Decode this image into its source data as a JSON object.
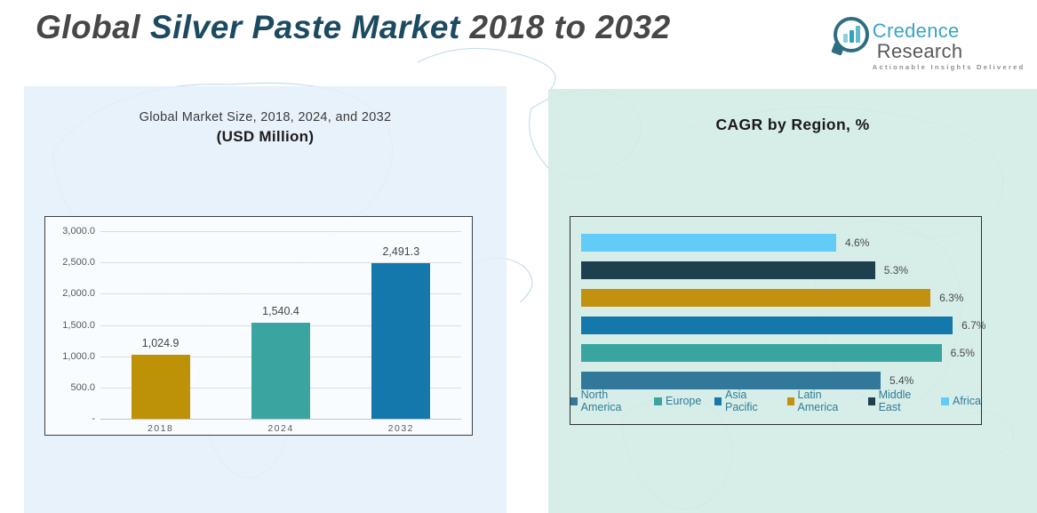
{
  "header": {
    "title_part1": "Global",
    "title_part2": "Silver Paste Market",
    "title_part3": "2018 to 2032"
  },
  "logo": {
    "brand_primary": "Credence",
    "brand_secondary": "Research",
    "tagline": "Actionable Insights Delivered",
    "icon": "bar-chart-speech-bubble-icon",
    "accent_color": "#3BA4C6",
    "ring_color": "#2E6E80"
  },
  "chart_data": [
    {
      "type": "bar",
      "title": "Global Market Size, 2018, 2024, and 2032",
      "subtitle": "(USD Million)",
      "categories": [
        "2018",
        "2024",
        "2032"
      ],
      "values": [
        1024.9,
        1540.4,
        2491.3
      ],
      "value_labels": [
        "1,024.9",
        "1,540.4",
        "2,491.3"
      ],
      "bar_colors": [
        "#BE9207",
        "#3AA5A0",
        "#1478AC"
      ],
      "xlabel": "",
      "ylabel": "",
      "ylim": [
        0,
        3000
      ],
      "yticks": [
        0,
        500,
        1000,
        1500,
        2000,
        2500,
        3000
      ],
      "ytick_labels": [
        "-",
        "500.0",
        "1,000.0",
        "1,500.0",
        "2,000.0",
        "2,500.0",
        "3,000.0"
      ],
      "grid": true,
      "legend_position": "none"
    },
    {
      "type": "bar",
      "orientation": "horizontal",
      "title": "CAGR by Region, %",
      "categories": [
        "Africa",
        "Middle East",
        "Latin America",
        "Asia Pacific",
        "Europe",
        "North America"
      ],
      "values": [
        4.6,
        5.3,
        6.3,
        6.7,
        6.5,
        5.4
      ],
      "value_labels": [
        "4.6%",
        "5.3%",
        "6.3%",
        "6.7%",
        "6.5%",
        "5.4%"
      ],
      "bar_colors": [
        "#62CBF7",
        "#1E3F4D",
        "#C29110",
        "#1478AC",
        "#3AA5A0",
        "#32789A"
      ],
      "xlim": [
        0,
        7.4
      ],
      "grid": false,
      "legend_position": "bottom",
      "legend": [
        {
          "label": "North America",
          "color": "#32789A"
        },
        {
          "label": "Europe",
          "color": "#3AA5A0"
        },
        {
          "label": "Asia Pacific",
          "color": "#1478AC"
        },
        {
          "label": "Latin America",
          "color": "#C29110"
        },
        {
          "label": "Middle East",
          "color": "#1E3F4D"
        },
        {
          "label": "Africa",
          "color": "#62CBF7"
        }
      ]
    }
  ]
}
